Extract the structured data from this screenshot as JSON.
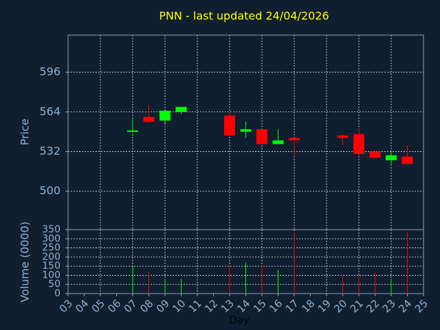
{
  "chart_data": [
    {
      "type": "candlestick",
      "title": "PNN - last updated 24/04/2026",
      "ylabel": "Price",
      "x": [
        7,
        8,
        9,
        10,
        13,
        14,
        15,
        16,
        17,
        20,
        21,
        22,
        23,
        24
      ],
      "open": [
        548,
        560,
        557,
        564,
        561,
        548,
        550,
        538,
        543,
        545,
        546,
        532,
        525,
        528
      ],
      "high": [
        558,
        570,
        565,
        568,
        564,
        556,
        550,
        550,
        543,
        546,
        551,
        533,
        532,
        537
      ],
      "low": [
        548,
        555,
        555,
        562,
        544,
        543,
        538,
        538,
        528,
        537,
        530,
        527,
        521,
        522
      ],
      "close": [
        549,
        556,
        565,
        568,
        545,
        550,
        538,
        541,
        541,
        543,
        530,
        527,
        529,
        522
      ],
      "up_color": "#00ff00",
      "down_color": "#ff0000",
      "xlim": [
        3,
        25
      ],
      "ylim": [
        469,
        626
      ],
      "yticks": [
        500,
        532,
        564,
        596
      ],
      "grid": true,
      "x_grid_step": 2
    },
    {
      "type": "bar",
      "ylabel": "Volume (0000)",
      "xlabel": "Day",
      "x": [
        7,
        8,
        9,
        10,
        13,
        14,
        15,
        16,
        17,
        20,
        21,
        22,
        23,
        24
      ],
      "values": [
        150,
        120,
        75,
        80,
        155,
        170,
        155,
        130,
        335,
        95,
        100,
        115,
        80,
        335
      ],
      "colors": [
        "#00ff00",
        "#ff0000",
        "#00ff00",
        "#00ff00",
        "#ff0000",
        "#00ff00",
        "#ff0000",
        "#00ff00",
        "#ff0000",
        "#ff0000",
        "#ff0000",
        "#ff0000",
        "#00ff00",
        "#ff0000"
      ],
      "xlim": [
        3,
        25
      ],
      "ylim": [
        0,
        350
      ],
      "yticks": [
        0,
        50,
        100,
        150,
        200,
        250,
        300,
        350
      ],
      "xticks": [
        {
          "value": 3,
          "label": "03"
        },
        {
          "value": 4,
          "label": "04"
        },
        {
          "value": 5,
          "label": "05"
        },
        {
          "value": 6,
          "label": "06"
        },
        {
          "value": 7,
          "label": "07"
        },
        {
          "value": 8,
          "label": "08"
        },
        {
          "value": 9,
          "label": "09"
        },
        10,
        11,
        12,
        13,
        14,
        15,
        16,
        17,
        18,
        19,
        20,
        21,
        22,
        23,
        24,
        25
      ],
      "grid": true,
      "x_grid_step": 2
    }
  ]
}
